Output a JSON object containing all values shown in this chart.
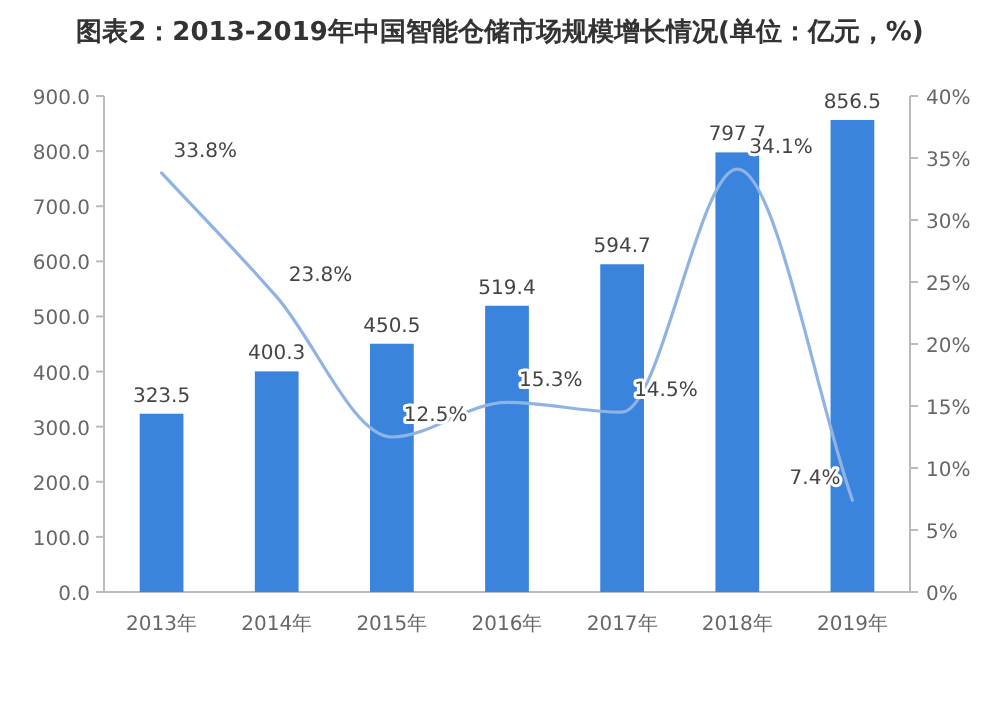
{
  "chart_data": {
    "type": "bar",
    "title": "图表2：2013-2019年中国智能仓储市场规模增长情况(单位：亿元，%)",
    "categories": [
      "2013年",
      "2014年",
      "2015年",
      "2016年",
      "2017年",
      "2018年",
      "2019年"
    ],
    "series": [
      {
        "color": "#3b84de",
        "values": [
          323.5,
          400.3,
          450.5,
          519.4,
          594.7,
          797.7,
          856.5
        ]
      },
      {
        "type": "line",
        "axis": "y2",
        "color": "#8fb4e3",
        "values": [
          33.8,
          23.8,
          12.5,
          15.3,
          14.5,
          34.1,
          7.4
        ],
        "value_labels": [
          "33.8%",
          "23.8%",
          "12.5%",
          "15.3%",
          "14.5%",
          "34.1%",
          "7.4%"
        ]
      }
    ],
    "ylim": [
      0,
      900
    ],
    "yticks": [
      {
        "value": 0,
        "label": "0.0"
      },
      {
        "value": 100,
        "label": "100.0"
      },
      {
        "value": 200,
        "label": "200.0"
      },
      {
        "value": 300,
        "label": "300.0"
      },
      {
        "value": 400,
        "label": "400.0"
      },
      {
        "value": 500,
        "label": "500.0"
      },
      {
        "value": 600,
        "label": "600.0"
      },
      {
        "value": 700,
        "label": "700.0"
      },
      {
        "value": 800,
        "label": "800.0"
      },
      {
        "value": 900,
        "label": "900.0"
      }
    ],
    "y2lim": [
      0,
      40
    ],
    "y2ticks": [
      {
        "value": 0,
        "label": "0%"
      },
      {
        "value": 5,
        "label": "5%"
      },
      {
        "value": 10,
        "label": "10%"
      },
      {
        "value": 15,
        "label": "15%"
      },
      {
        "value": 20,
        "label": "20%"
      },
      {
        "value": 25,
        "label": "25%"
      },
      {
        "value": 30,
        "label": "30%"
      },
      {
        "value": 35,
        "label": "35%"
      },
      {
        "value": 40,
        "label": "40%"
      }
    ],
    "data_labels": true,
    "grid": false
  }
}
